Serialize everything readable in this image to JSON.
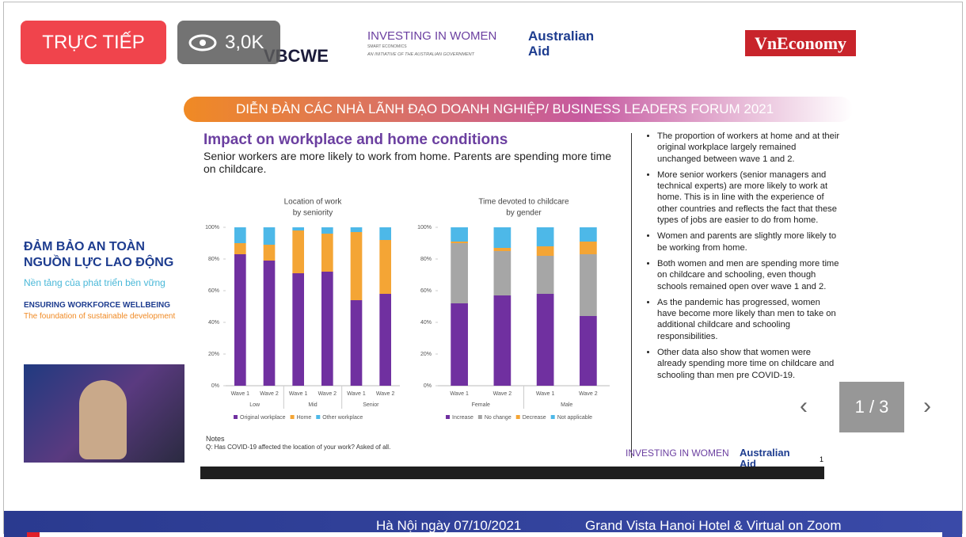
{
  "live_badge": "TRỰC TIẾP",
  "viewers": "3,0K",
  "header": {
    "vbcwe": "VBCWE",
    "iiw": "INVESTING IN WOMEN",
    "iiw_sub": "SMART ECONOMICS",
    "iiw_tag": "AN INITIATIVE OF THE AUSTRALIAN GOVERNMENT",
    "aus1": "Australian",
    "aus2": "Aid",
    "vneconomy": "VnEconomy"
  },
  "banner": "DIỄN ĐÀN CÁC NHÀ LÃNH ĐẠO DOANH NGHIỆP/ BUSINESS LEADERS FORUM 2021",
  "side": {
    "vn1": "ĐẢM BẢO AN TOÀN",
    "vn2": "NGUỒN LỰC LAO ĐỘNG",
    "vn3": "Nền tảng của phát triển bền vững",
    "en1": "ENSURING WORKFORCE WELLBEING",
    "en2": "The foundation of sustainable development"
  },
  "slide": {
    "title": "Impact on workplace and home conditions",
    "subtitle": "Senior workers are more likely to work from home. Parents are spending more time on childcare.",
    "bullets": [
      "The proportion of workers at home and at their original workplace largely remained unchanged between wave 1 and 2.",
      "More senior workers (senior managers and technical experts) are more likely to work at home. This is in line with the experience of other countries and reflects the fact that these types of jobs are easier to do from home.",
      "Women and parents are slightly more likely to be working from home.",
      "Both women and men are spending more time on childcare and schooling, even though schools remained open over wave 1 and 2.",
      "As the pandemic has progressed, women have become more likely than men to take on additional childcare and schooling responsibilities.",
      "Other data also show that women were already spending more time on childcare and schooling than men pre COVID-19."
    ],
    "notes_label": "Notes",
    "notes": "Q: Has COVID-19 affected the location of your work? Asked of all.",
    "footer_iiw": "INVESTING IN WOMEN",
    "footer_aus": "Australian Aid",
    "page": "1"
  },
  "chart_data": [
    {
      "type": "stacked_bar",
      "title": "Location of work",
      "subtitle": "by seniority",
      "categories": [
        "Wave 1",
        "Wave 2",
        "Wave 1",
        "Wave 2",
        "Wave 1",
        "Wave 2"
      ],
      "groups": [
        "Low",
        "Mid",
        "Senior"
      ],
      "series": [
        {
          "name": "Original workplace",
          "color": "#7030a0",
          "values": [
            83,
            79,
            71,
            72,
            54,
            58
          ]
        },
        {
          "name": "Home",
          "color": "#f4a535",
          "values": [
            7,
            10,
            27,
            24,
            43,
            34
          ]
        },
        {
          "name": "Other workplace",
          "color": "#4db8e8",
          "values": [
            10,
            11,
            2,
            4,
            3,
            8
          ]
        }
      ],
      "ylim": [
        0,
        100
      ],
      "yticks": [
        {
          "value": 0,
          "label": "0%"
        },
        {
          "value": 20,
          "label": "20%"
        },
        {
          "value": 40,
          "label": "40%"
        },
        {
          "value": 60,
          "label": "60%"
        },
        {
          "value": 80,
          "label": "80%"
        },
        {
          "value": 100,
          "label": "100%"
        }
      ]
    },
    {
      "type": "stacked_bar",
      "title": "Time devoted to childcare",
      "subtitle": "by gender",
      "categories": [
        "Wave 1",
        "Wave 2",
        "Wave 1",
        "Wave 2"
      ],
      "groups": [
        "Female",
        "Male"
      ],
      "series": [
        {
          "name": "Increase",
          "color": "#7030a0",
          "values": [
            52,
            57,
            58,
            44
          ]
        },
        {
          "name": "No change",
          "color": "#a6a6a6",
          "values": [
            38,
            28,
            24,
            39
          ]
        },
        {
          "name": "Decrease",
          "color": "#f4a535",
          "values": [
            1,
            2,
            6,
            8
          ]
        },
        {
          "name": "Not applicable",
          "color": "#4db8e8",
          "values": [
            9,
            13,
            12,
            9
          ]
        }
      ],
      "ylim": [
        0,
        100
      ],
      "yticks": [
        {
          "value": 0,
          "label": "0%"
        },
        {
          "value": 20,
          "label": "20%"
        },
        {
          "value": 40,
          "label": "40%"
        },
        {
          "value": 60,
          "label": "60%"
        },
        {
          "value": 80,
          "label": "80%"
        },
        {
          "value": 100,
          "label": "100%"
        }
      ]
    }
  ],
  "pager": "1 / 3",
  "footer": {
    "date": "Hà Nội ngày 07/10/2021",
    "venue": "Grand Vista Hanoi Hotel & Virtual on Zoom"
  }
}
